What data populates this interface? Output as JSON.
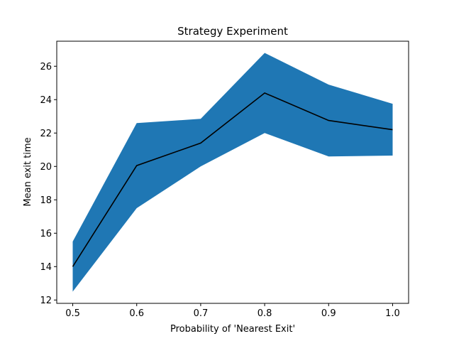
{
  "chart_data": {
    "type": "line",
    "title": "Strategy Experiment",
    "xlabel": "Probability of 'Nearest Exit'",
    "ylabel": "Mean exit time",
    "x": [
      0.5,
      0.6,
      0.7,
      0.8,
      0.9,
      1.0
    ],
    "series": [
      {
        "values": [
          14.0,
          20.05,
          21.4,
          24.4,
          22.75,
          22.2
        ],
        "lower": [
          12.5,
          17.5,
          20.0,
          22.0,
          20.6,
          20.65
        ],
        "upper": [
          15.5,
          22.6,
          22.85,
          26.8,
          24.9,
          23.75
        ]
      }
    ],
    "xlim": [
      0.475,
      1.025
    ],
    "ylim": [
      11.8,
      27.5
    ],
    "xticks": [
      "0.5",
      "0.6",
      "0.7",
      "0.8",
      "0.9",
      "1.0"
    ],
    "yticks": [
      "12",
      "14",
      "16",
      "18",
      "20",
      "22",
      "24",
      "26"
    ],
    "grid": false,
    "colors": {
      "band": "#1f77b4",
      "line": "#000000"
    }
  }
}
